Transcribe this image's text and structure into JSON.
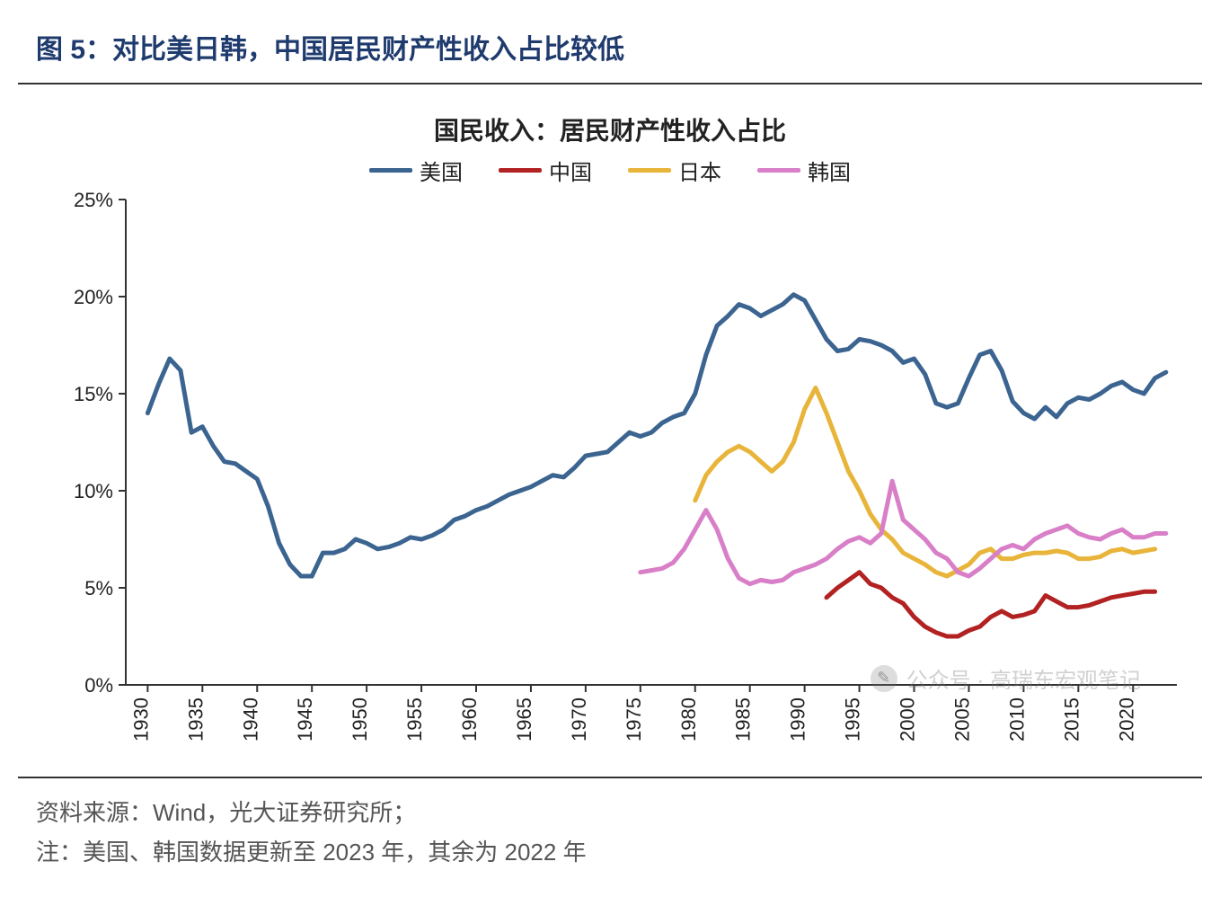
{
  "figure_title": "图 5：对比美日韩，中国居民财产性收入占比较低",
  "chart": {
    "type": "line",
    "title": "国民收入：居民财产性收入占比",
    "background_color": "#ffffff",
    "axis_color": "#333333",
    "tick_fontsize": 22,
    "title_fontsize": 28,
    "legend_fontsize": 24,
    "line_width": 5,
    "x": {
      "min": 1928,
      "max": 2024,
      "ticks": [
        1930,
        1935,
        1940,
        1945,
        1950,
        1955,
        1960,
        1965,
        1970,
        1975,
        1980,
        1985,
        1990,
        1995,
        2000,
        2005,
        2010,
        2015,
        2020
      ],
      "tick_rotation": -90
    },
    "y": {
      "min": 0,
      "max": 25,
      "step": 5,
      "suffix": "%",
      "ticks": [
        0,
        5,
        10,
        15,
        20,
        25
      ]
    },
    "series": [
      {
        "name": "美国",
        "color": "#3b6490",
        "points": [
          [
            1930,
            14.0
          ],
          [
            1931,
            15.5
          ],
          [
            1932,
            16.8
          ],
          [
            1933,
            16.2
          ],
          [
            1934,
            13.0
          ],
          [
            1935,
            13.3
          ],
          [
            1936,
            12.3
          ],
          [
            1937,
            11.5
          ],
          [
            1938,
            11.4
          ],
          [
            1939,
            11.0
          ],
          [
            1940,
            10.6
          ],
          [
            1941,
            9.2
          ],
          [
            1942,
            7.3
          ],
          [
            1943,
            6.2
          ],
          [
            1944,
            5.6
          ],
          [
            1945,
            5.6
          ],
          [
            1946,
            6.8
          ],
          [
            1947,
            6.8
          ],
          [
            1948,
            7.0
          ],
          [
            1949,
            7.5
          ],
          [
            1950,
            7.3
          ],
          [
            1951,
            7.0
          ],
          [
            1952,
            7.1
          ],
          [
            1953,
            7.3
          ],
          [
            1954,
            7.6
          ],
          [
            1955,
            7.5
          ],
          [
            1956,
            7.7
          ],
          [
            1957,
            8.0
          ],
          [
            1958,
            8.5
          ],
          [
            1959,
            8.7
          ],
          [
            1960,
            9.0
          ],
          [
            1961,
            9.2
          ],
          [
            1962,
            9.5
          ],
          [
            1963,
            9.8
          ],
          [
            1964,
            10.0
          ],
          [
            1965,
            10.2
          ],
          [
            1966,
            10.5
          ],
          [
            1967,
            10.8
          ],
          [
            1968,
            10.7
          ],
          [
            1969,
            11.2
          ],
          [
            1970,
            11.8
          ],
          [
            1971,
            11.9
          ],
          [
            1972,
            12.0
          ],
          [
            1973,
            12.5
          ],
          [
            1974,
            13.0
          ],
          [
            1975,
            12.8
          ],
          [
            1976,
            13.0
          ],
          [
            1977,
            13.5
          ],
          [
            1978,
            13.8
          ],
          [
            1979,
            14.0
          ],
          [
            1980,
            15.0
          ],
          [
            1981,
            17.0
          ],
          [
            1982,
            18.5
          ],
          [
            1983,
            19.0
          ],
          [
            1984,
            19.6
          ],
          [
            1985,
            19.4
          ],
          [
            1986,
            19.0
          ],
          [
            1987,
            19.3
          ],
          [
            1988,
            19.6
          ],
          [
            1989,
            20.1
          ],
          [
            1990,
            19.8
          ],
          [
            1991,
            18.8
          ],
          [
            1992,
            17.8
          ],
          [
            1993,
            17.2
          ],
          [
            1994,
            17.3
          ],
          [
            1995,
            17.8
          ],
          [
            1996,
            17.7
          ],
          [
            1997,
            17.5
          ],
          [
            1998,
            17.2
          ],
          [
            1999,
            16.6
          ],
          [
            2000,
            16.8
          ],
          [
            2001,
            16.0
          ],
          [
            2002,
            14.5
          ],
          [
            2003,
            14.3
          ],
          [
            2004,
            14.5
          ],
          [
            2005,
            15.8
          ],
          [
            2006,
            17.0
          ],
          [
            2007,
            17.2
          ],
          [
            2008,
            16.2
          ],
          [
            2009,
            14.6
          ],
          [
            2010,
            14.0
          ],
          [
            2011,
            13.7
          ],
          [
            2012,
            14.3
          ],
          [
            2013,
            13.8
          ],
          [
            2014,
            14.5
          ],
          [
            2015,
            14.8
          ],
          [
            2016,
            14.7
          ],
          [
            2017,
            15.0
          ],
          [
            2018,
            15.4
          ],
          [
            2019,
            15.6
          ],
          [
            2020,
            15.2
          ],
          [
            2021,
            15.0
          ],
          [
            2022,
            15.8
          ],
          [
            2023,
            16.1
          ]
        ]
      },
      {
        "name": "中国",
        "color": "#b22222",
        "points": [
          [
            1992,
            4.5
          ],
          [
            1993,
            5.0
          ],
          [
            1994,
            5.4
          ],
          [
            1995,
            5.8
          ],
          [
            1996,
            5.2
          ],
          [
            1997,
            5.0
          ],
          [
            1998,
            4.5
          ],
          [
            1999,
            4.2
          ],
          [
            2000,
            3.5
          ],
          [
            2001,
            3.0
          ],
          [
            2002,
            2.7
          ],
          [
            2003,
            2.5
          ],
          [
            2004,
            2.5
          ],
          [
            2005,
            2.8
          ],
          [
            2006,
            3.0
          ],
          [
            2007,
            3.5
          ],
          [
            2008,
            3.8
          ],
          [
            2009,
            3.5
          ],
          [
            2010,
            3.6
          ],
          [
            2011,
            3.8
          ],
          [
            2012,
            4.6
          ],
          [
            2013,
            4.3
          ],
          [
            2014,
            4.0
          ],
          [
            2015,
            4.0
          ],
          [
            2016,
            4.1
          ],
          [
            2017,
            4.3
          ],
          [
            2018,
            4.5
          ],
          [
            2019,
            4.6
          ],
          [
            2020,
            4.7
          ],
          [
            2021,
            4.8
          ],
          [
            2022,
            4.8
          ]
        ]
      },
      {
        "name": "日本",
        "color": "#e8b43a",
        "points": [
          [
            1980,
            9.5
          ],
          [
            1981,
            10.8
          ],
          [
            1982,
            11.5
          ],
          [
            1983,
            12.0
          ],
          [
            1984,
            12.3
          ],
          [
            1985,
            12.0
          ],
          [
            1986,
            11.5
          ],
          [
            1987,
            11.0
          ],
          [
            1988,
            11.5
          ],
          [
            1989,
            12.5
          ],
          [
            1990,
            14.2
          ],
          [
            1991,
            15.3
          ],
          [
            1992,
            14.0
          ],
          [
            1993,
            12.5
          ],
          [
            1994,
            11.0
          ],
          [
            1995,
            10.0
          ],
          [
            1996,
            8.8
          ],
          [
            1997,
            8.0
          ],
          [
            1998,
            7.5
          ],
          [
            1999,
            6.8
          ],
          [
            2000,
            6.5
          ],
          [
            2001,
            6.2
          ],
          [
            2002,
            5.8
          ],
          [
            2003,
            5.6
          ],
          [
            2004,
            5.9
          ],
          [
            2005,
            6.2
          ],
          [
            2006,
            6.8
          ],
          [
            2007,
            7.0
          ],
          [
            2008,
            6.5
          ],
          [
            2009,
            6.5
          ],
          [
            2010,
            6.7
          ],
          [
            2011,
            6.8
          ],
          [
            2012,
            6.8
          ],
          [
            2013,
            6.9
          ],
          [
            2014,
            6.8
          ],
          [
            2015,
            6.5
          ],
          [
            2016,
            6.5
          ],
          [
            2017,
            6.6
          ],
          [
            2018,
            6.9
          ],
          [
            2019,
            7.0
          ],
          [
            2020,
            6.8
          ],
          [
            2021,
            6.9
          ],
          [
            2022,
            7.0
          ]
        ]
      },
      {
        "name": "韩国",
        "color": "#d87fc8",
        "points": [
          [
            1975,
            5.8
          ],
          [
            1976,
            5.9
          ],
          [
            1977,
            6.0
          ],
          [
            1978,
            6.3
          ],
          [
            1979,
            7.0
          ],
          [
            1980,
            8.0
          ],
          [
            1981,
            9.0
          ],
          [
            1982,
            8.0
          ],
          [
            1983,
            6.5
          ],
          [
            1984,
            5.5
          ],
          [
            1985,
            5.2
          ],
          [
            1986,
            5.4
          ],
          [
            1987,
            5.3
          ],
          [
            1988,
            5.4
          ],
          [
            1989,
            5.8
          ],
          [
            1990,
            6.0
          ],
          [
            1991,
            6.2
          ],
          [
            1992,
            6.5
          ],
          [
            1993,
            7.0
          ],
          [
            1994,
            7.4
          ],
          [
            1995,
            7.6
          ],
          [
            1996,
            7.3
          ],
          [
            1997,
            7.8
          ],
          [
            1998,
            10.5
          ],
          [
            1999,
            8.5
          ],
          [
            2000,
            8.0
          ],
          [
            2001,
            7.5
          ],
          [
            2002,
            6.8
          ],
          [
            2003,
            6.5
          ],
          [
            2004,
            5.8
          ],
          [
            2005,
            5.6
          ],
          [
            2006,
            6.0
          ],
          [
            2007,
            6.5
          ],
          [
            2008,
            7.0
          ],
          [
            2009,
            7.2
          ],
          [
            2010,
            7.0
          ],
          [
            2011,
            7.5
          ],
          [
            2012,
            7.8
          ],
          [
            2013,
            8.0
          ],
          [
            2014,
            8.2
          ],
          [
            2015,
            7.8
          ],
          [
            2016,
            7.6
          ],
          [
            2017,
            7.5
          ],
          [
            2018,
            7.8
          ],
          [
            2019,
            8.0
          ],
          [
            2020,
            7.6
          ],
          [
            2021,
            7.6
          ],
          [
            2022,
            7.8
          ],
          [
            2023,
            7.8
          ]
        ]
      }
    ]
  },
  "source": "资料来源：Wind，光大证券研究所；",
  "note": "注：美国、韩国数据更新至 2023 年，其余为 2022 年",
  "watermark": "公众号 · 高瑞东宏观笔记"
}
